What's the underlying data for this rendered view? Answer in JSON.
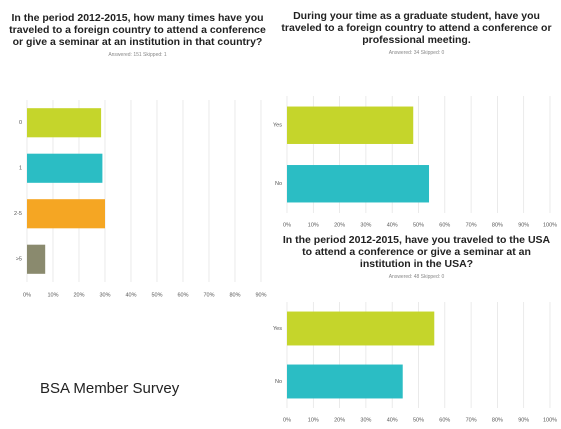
{
  "chart_data": [
    {
      "type": "hbar",
      "title": "In the period 2012-2015, how many times have you traveled to a foreign country to attend a conference or give a seminar at an institution in that country?",
      "subtitle": "Answered: 151   Skipped: 1",
      "categories": [
        "0",
        "1",
        "2-5",
        ">5"
      ],
      "values": [
        28.5,
        29,
        30,
        7
      ],
      "colors": [
        "#c5d52b",
        "#2bbdc4",
        "#f5a623",
        "#8a8a6e"
      ],
      "xlim": [
        0,
        90
      ],
      "xticks": [
        {
          "value": 0,
          "label": "0%"
        },
        {
          "value": 10,
          "label": "10%"
        },
        {
          "value": 20,
          "label": "20%"
        },
        {
          "value": 30,
          "label": "30%"
        },
        {
          "value": 40,
          "label": "40%"
        },
        {
          "value": 50,
          "label": "50%"
        },
        {
          "value": 60,
          "label": "60%"
        },
        {
          "value": 70,
          "label": "70%"
        },
        {
          "value": 80,
          "label": "80%"
        },
        {
          "value": 90,
          "label": "90%"
        }
      ],
      "grid": true
    },
    {
      "type": "hbar",
      "title": "During your time as a graduate student, have you traveled to a foreign country to attend a conference or professional meeting.",
      "subtitle": "Answered: 34   Skipped: 0",
      "categories": [
        "Yes",
        "No"
      ],
      "values": [
        48,
        54
      ],
      "colors": [
        "#c5d52b",
        "#2bbdc4"
      ],
      "xlim": [
        0,
        100
      ],
      "xticks": [
        {
          "value": 0,
          "label": "0%"
        },
        {
          "value": 10,
          "label": "10%"
        },
        {
          "value": 20,
          "label": "20%"
        },
        {
          "value": 30,
          "label": "30%"
        },
        {
          "value": 40,
          "label": "40%"
        },
        {
          "value": 50,
          "label": "50%"
        },
        {
          "value": 60,
          "label": "60%"
        },
        {
          "value": 70,
          "label": "70%"
        },
        {
          "value": 80,
          "label": "80%"
        },
        {
          "value": 90,
          "label": "90%"
        },
        {
          "value": 100,
          "label": "100%"
        }
      ],
      "grid": true
    },
    {
      "type": "hbar",
      "title": "In the period 2012-2015, have you traveled to the USA to attend a conference or give a seminar at an institution in the USA?",
      "subtitle": "Answered: 48   Skipped: 0",
      "categories": [
        "Yes",
        "No"
      ],
      "values": [
        56,
        44
      ],
      "colors": [
        "#c5d52b",
        "#2bbdc4"
      ],
      "xlim": [
        0,
        100
      ],
      "xticks": [
        {
          "value": 0,
          "label": "0%"
        },
        {
          "value": 10,
          "label": "10%"
        },
        {
          "value": 20,
          "label": "20%"
        },
        {
          "value": 30,
          "label": "30%"
        },
        {
          "value": 40,
          "label": "40%"
        },
        {
          "value": 50,
          "label": "50%"
        },
        {
          "value": 60,
          "label": "60%"
        },
        {
          "value": 70,
          "label": "70%"
        },
        {
          "value": 80,
          "label": "80%"
        },
        {
          "value": 90,
          "label": "90%"
        },
        {
          "value": 100,
          "label": "100%"
        }
      ],
      "grid": true
    }
  ],
  "footer_text": "BSA Member Survey"
}
